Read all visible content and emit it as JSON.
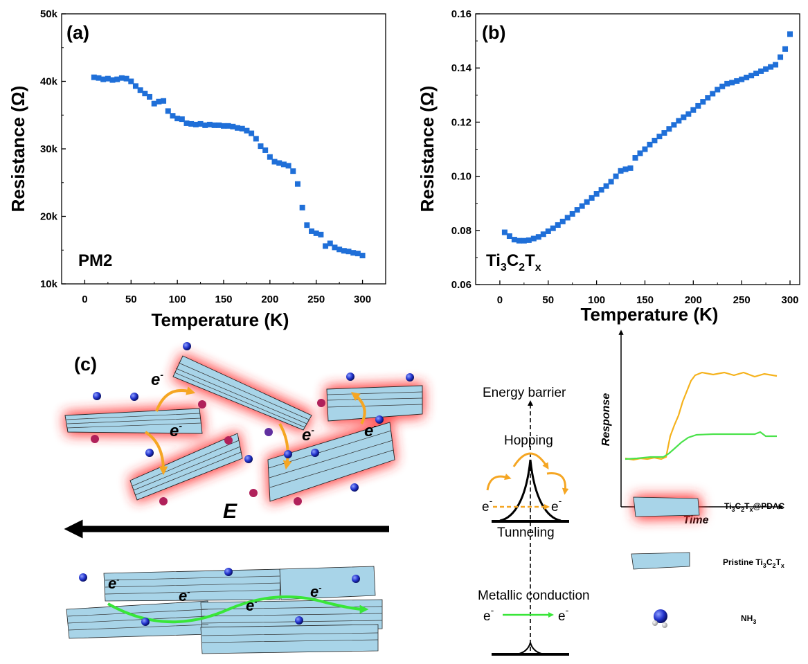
{
  "chart_data": [
    {
      "type": "scatter",
      "panel_label": "(a)",
      "annotation": "PM2",
      "xlabel": "Temperature (K)",
      "ylabel": "Resistance (Ω)",
      "xlim": [
        -25,
        325
      ],
      "ylim": [
        10000,
        50000
      ],
      "xticks": [
        0,
        50,
        100,
        150,
        200,
        250,
        300
      ],
      "yticks": [
        10000,
        20000,
        30000,
        40000,
        50000
      ],
      "ytick_labels": [
        "10k",
        "20k",
        "30k",
        "40k",
        "50k"
      ],
      "color": "#1f6fd8",
      "x": [
        10,
        15,
        20,
        25,
        30,
        35,
        40,
        45,
        50,
        55,
        60,
        65,
        70,
        75,
        80,
        85,
        90,
        95,
        100,
        105,
        110,
        115,
        120,
        125,
        130,
        135,
        140,
        145,
        150,
        155,
        160,
        165,
        170,
        175,
        180,
        185,
        190,
        195,
        200,
        205,
        210,
        215,
        220,
        225,
        230,
        235,
        240,
        245,
        250,
        255,
        260,
        265,
        270,
        275,
        280,
        285,
        290,
        295,
        300
      ],
      "y": [
        40600,
        40500,
        40300,
        40400,
        40200,
        40300,
        40500,
        40400,
        40000,
        39300,
        38700,
        38200,
        37700,
        36700,
        37000,
        37100,
        35600,
        34900,
        34500,
        34400,
        33800,
        33700,
        33600,
        33700,
        33500,
        33600,
        33500,
        33500,
        33400,
        33400,
        33300,
        33100,
        33000,
        32700,
        32300,
        31500,
        30400,
        29800,
        28800,
        28100,
        27900,
        27700,
        27500,
        26700,
        24800,
        21300,
        18700,
        17800,
        17500,
        17300,
        15600,
        16000,
        15400,
        15100,
        14900,
        14800,
        14600,
        14500,
        14200
      ]
    },
    {
      "type": "scatter",
      "panel_label": "(b)",
      "annotation_base": "Ti",
      "annotation_sub1": "3",
      "annotation_mid": "C",
      "annotation_sub2": "2",
      "annotation_end": "T",
      "annotation_sub3": "x",
      "xlabel": "Temperature (K)",
      "ylabel": "Resistance (Ω)",
      "xlim": [
        -25,
        310
      ],
      "ylim": [
        0.06,
        0.16
      ],
      "xticks": [
        0,
        50,
        100,
        150,
        200,
        250,
        300
      ],
      "yticks": [
        0.06,
        0.08,
        0.1,
        0.12,
        0.14,
        0.16
      ],
      "ytick_labels": [
        "0.06",
        "0.08",
        "0.10",
        "0.12",
        "0.14",
        "0.16"
      ],
      "color": "#1f6fd8",
      "x": [
        5,
        10,
        15,
        20,
        25,
        30,
        35,
        40,
        45,
        50,
        55,
        60,
        65,
        70,
        75,
        80,
        85,
        90,
        95,
        100,
        105,
        110,
        115,
        120,
        125,
        130,
        135,
        140,
        145,
        150,
        155,
        160,
        165,
        170,
        175,
        180,
        185,
        190,
        195,
        200,
        205,
        210,
        215,
        220,
        225,
        230,
        235,
        240,
        245,
        250,
        255,
        260,
        265,
        270,
        275,
        280,
        285,
        290,
        295,
        300
      ],
      "y": [
        0.0793,
        0.0779,
        0.0766,
        0.0762,
        0.0762,
        0.0764,
        0.077,
        0.0776,
        0.0786,
        0.0797,
        0.0808,
        0.082,
        0.0833,
        0.0847,
        0.0861,
        0.0876,
        0.089,
        0.0905,
        0.092,
        0.0935,
        0.095,
        0.0964,
        0.098,
        0.1,
        0.102,
        0.1026,
        0.103,
        0.1068,
        0.1085,
        0.11,
        0.1117,
        0.1132,
        0.1147,
        0.116,
        0.1175,
        0.119,
        0.1205,
        0.1218,
        0.123,
        0.1245,
        0.126,
        0.1275,
        0.129,
        0.1305,
        0.132,
        0.1332,
        0.1342,
        0.1346,
        0.1352,
        0.1358,
        0.1365,
        0.1372,
        0.138,
        0.1388,
        0.1396,
        0.1404,
        0.1412,
        0.144,
        0.147,
        0.1525
      ]
    }
  ],
  "schematic": {
    "panel_label": "(c)",
    "field_label": "E",
    "electron_base": "e",
    "electron_sup": "-",
    "energy_barrier": "Energy barrier",
    "hopping": "Hopping",
    "tunneling": "Tunneling",
    "metallic": "Metallic conduction",
    "inset_ylabel": "Response",
    "inset_xlabel": "Time",
    "legend": {
      "pdac_pre": "Ti",
      "pdac_s1": "3",
      "pdac_mid": "C",
      "pdac_s2": "2",
      "pdac_mid2": "T",
      "pdac_s3": "x",
      "pdac_end": "@PDAC",
      "pristine_pre": "Pristine Ti",
      "pristine_s1": "3",
      "pristine_mid": "C",
      "pristine_s2": "2",
      "pristine_mid2": "T",
      "pristine_s3": "x",
      "nh3_pre": "NH",
      "nh3_sub": "3"
    },
    "colors": {
      "flake": "#a8d4e8",
      "glow": "#ff2a2a",
      "hop_arrow": "#f5a623",
      "band_arrow": "#39e639",
      "nitrogen": "#2233cc",
      "inset_orange": "#f5b21c",
      "inset_green": "#4ae24a"
    }
  }
}
